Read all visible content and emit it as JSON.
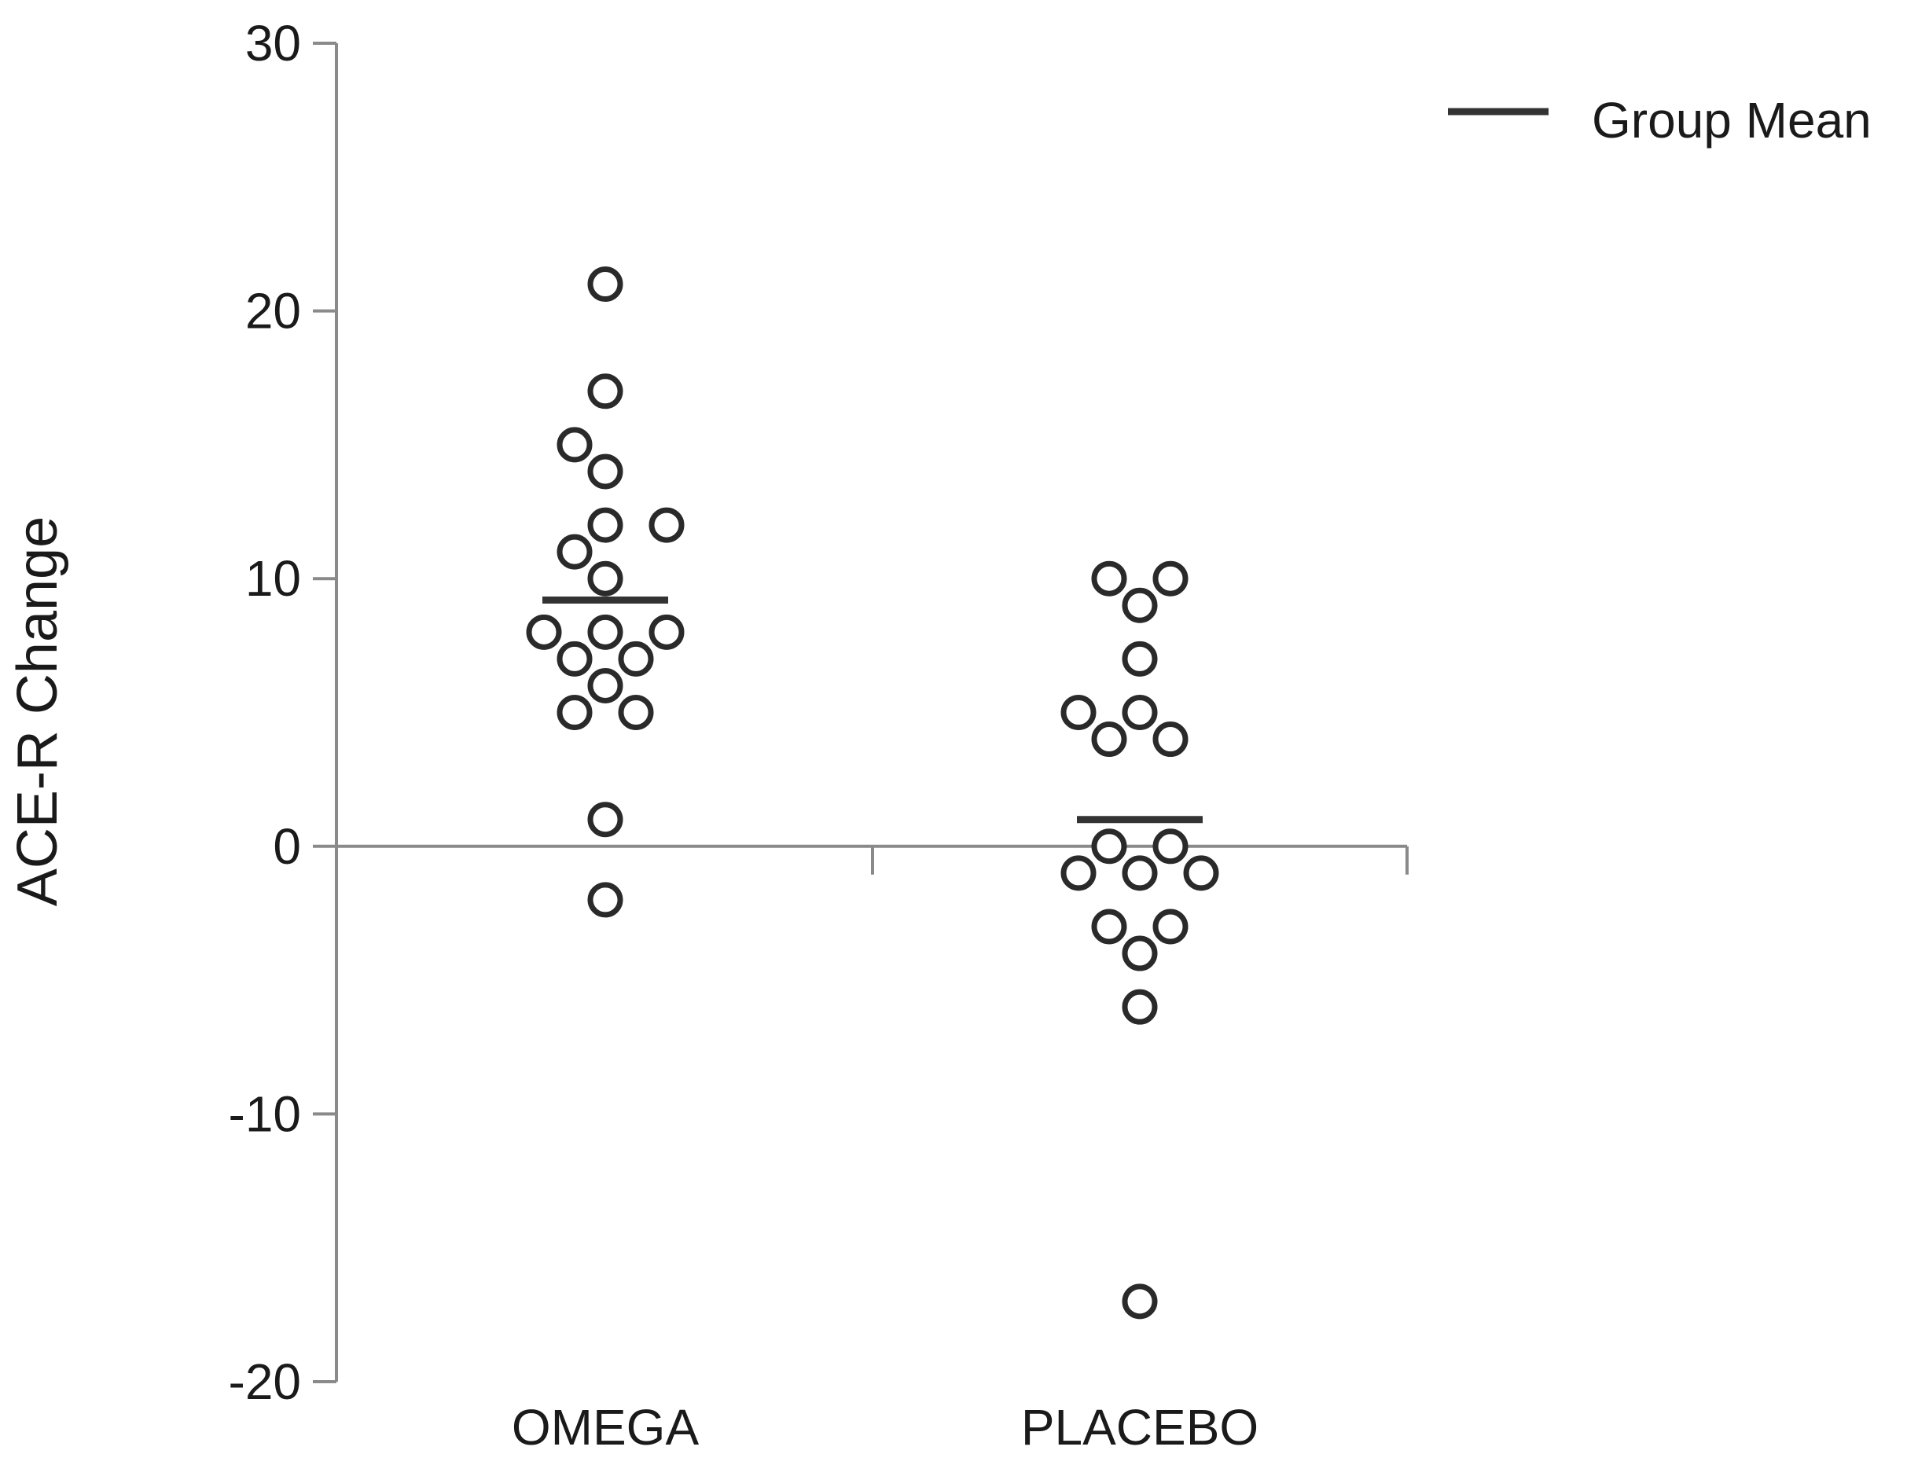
{
  "chart_data": {
    "type": "scatter",
    "title": "",
    "xlabel": "",
    "ylabel": "ACE-R Change",
    "ylim": [
      -20,
      30
    ],
    "yticks": [
      -20,
      -10,
      0,
      10,
      20,
      30
    ],
    "ytick_labels": [
      "-20",
      "-10",
      "0",
      "10",
      "20",
      "30"
    ],
    "categories": [
      "OMEGA",
      "PLACEBO"
    ],
    "legend": {
      "position": "top-right",
      "entries": [
        {
          "label": "Group Mean",
          "marker": "line"
        }
      ]
    },
    "series": [
      {
        "name": "OMEGA",
        "mean": 9.2,
        "points": [
          21,
          17,
          15,
          14,
          12,
          12,
          11,
          10,
          8,
          8,
          8,
          7,
          7,
          6,
          5,
          5,
          1,
          -2
        ],
        "jitter": [
          0,
          0,
          -1,
          0,
          0,
          2,
          -1,
          0,
          -2,
          0,
          2,
          -1,
          1,
          0,
          -1,
          1,
          0,
          0
        ]
      },
      {
        "name": "PLACEBO",
        "mean": 1,
        "points": [
          10,
          10,
          9,
          7,
          5,
          5,
          4,
          4,
          0,
          0,
          -1,
          -1,
          -1,
          -3,
          -3,
          -4,
          -6,
          -17
        ],
        "jitter": [
          -1,
          1,
          0,
          0,
          -2,
          0,
          -1,
          1,
          -1,
          1,
          -2,
          0,
          2,
          -1,
          1,
          0,
          0,
          0
        ]
      }
    ],
    "colors": {
      "axis": "#8a8a8a",
      "marker_edge": "#2a2a2a",
      "mean_line": "#333333",
      "text": "#1a1a1a"
    }
  }
}
